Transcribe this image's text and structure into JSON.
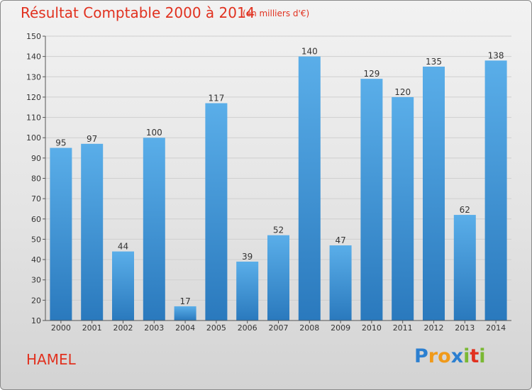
{
  "chart_data": {
    "type": "bar",
    "title": "Résultat Comptable 2000 à 2014",
    "subtitle": "(en milliers d'€)",
    "categories": [
      "2000",
      "2001",
      "2002",
      "2003",
      "2004",
      "2005",
      "2006",
      "2007",
      "2008",
      "2009",
      "2010",
      "2011",
      "2012",
      "2013",
      "2014"
    ],
    "values": [
      95,
      97,
      44,
      100,
      17,
      117,
      39,
      52,
      140,
      47,
      129,
      120,
      135,
      62,
      138
    ],
    "ylim": [
      10,
      150
    ],
    "yticks": [
      10,
      20,
      30,
      40,
      50,
      60,
      70,
      80,
      90,
      100,
      110,
      120,
      130,
      140,
      150
    ],
    "xlabel": "",
    "ylabel": "",
    "grid": true,
    "bar_color_top": "#5aaee9",
    "bar_color_bottom": "#2a79bd"
  },
  "footer": {
    "commune": "HAMEL",
    "logo_letters": [
      "P",
      "r",
      "o",
      "x",
      "i",
      "t",
      "i"
    ]
  }
}
